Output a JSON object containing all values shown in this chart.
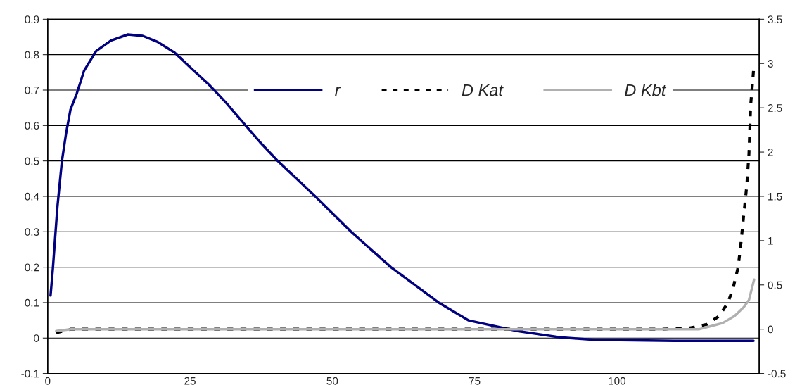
{
  "chart_data": {
    "type": "line",
    "xlim": [
      0,
      125
    ],
    "xticks": [
      0,
      25,
      50,
      75,
      100
    ],
    "ylim": [
      -0.1,
      0.9
    ],
    "yticks": [
      -0.1,
      0,
      0.1,
      0.2,
      0.3,
      0.4,
      0.5,
      0.6,
      0.7,
      0.8,
      0.9
    ],
    "y2lim": [
      -0.5,
      3.5
    ],
    "y2ticks": [
      -0.5,
      0,
      0.5,
      1,
      1.5,
      2,
      2.5,
      3,
      3.5
    ],
    "grid": "y",
    "legend": "top",
    "marker": "none",
    "series": [
      {
        "name": "r",
        "color": "#000080",
        "line_style": "solid",
        "x": [
          0.5,
          0.9,
          1.7,
          2.5,
          3.2,
          4.0,
          5.1,
          6.4,
          8.5,
          11.1,
          14.1,
          16.7,
          19.2,
          22.3,
          25.3,
          28.3,
          31.3,
          34.3,
          37.3,
          40.3,
          47,
          53.3,
          60.3,
          68.7,
          73.9,
          82.5,
          90,
          96,
          110,
          124
        ],
        "values": [
          0.12,
          0.195,
          0.37,
          0.5,
          0.575,
          0.645,
          0.69,
          0.755,
          0.81,
          0.84,
          0.857,
          0.853,
          0.837,
          0.806,
          0.76,
          0.716,
          0.665,
          0.609,
          0.553,
          0.502,
          0.4,
          0.3,
          0.2,
          0.1,
          0.05,
          0.02,
          0.002,
          -0.005,
          -0.008,
          -0.008
        ]
      },
      {
        "name": "D Kat",
        "color": "#000000",
        "line_style": "dotted",
        "axis": "y2",
        "x": [
          1.5,
          4,
          108,
          112.9,
          115.8,
          118,
          119.5,
          120.4,
          121.3,
          121.8,
          122.3,
          122.8,
          123.2,
          123.5,
          124
        ],
        "values": [
          -0.04,
          0,
          0,
          0.015,
          0.055,
          0.15,
          0.3,
          0.46,
          0.7,
          0.98,
          1.3,
          1.61,
          1.98,
          2.53,
          2.92
        ]
      },
      {
        "name": "D Kbt",
        "color": "#b0b0b0",
        "line_style": "solid",
        "axis": "y2",
        "x": [
          1.5,
          4,
          110,
          114.5,
          118.6,
          120.7,
          122.3,
          123.2,
          124.1
        ],
        "values": [
          -0.02,
          0,
          0,
          0.0,
          0.07,
          0.15,
          0.25,
          0.33,
          0.56
        ]
      }
    ]
  }
}
